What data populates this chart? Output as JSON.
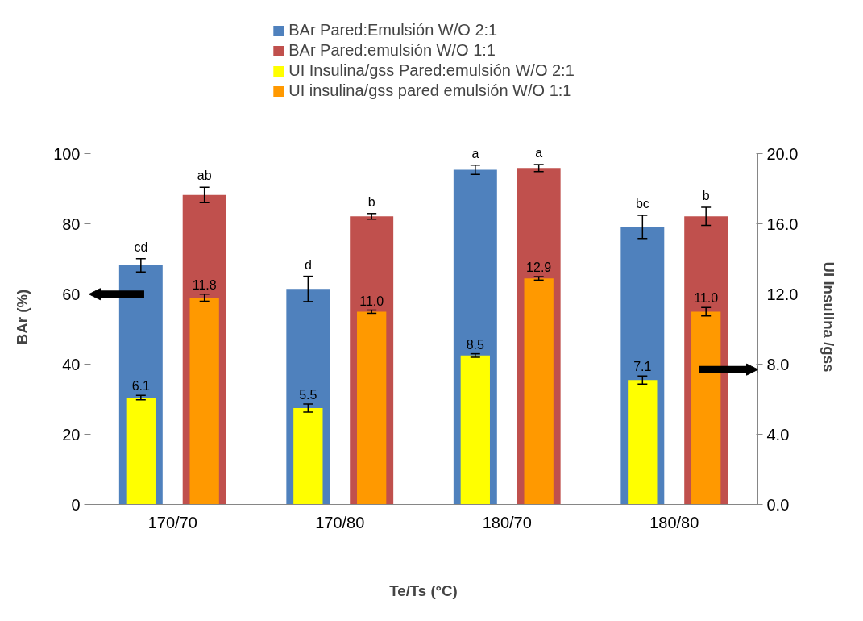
{
  "chart_data": {
    "type": "bar",
    "xlabel": "Te/Ts (°C)",
    "ylabel": "BAr (%)",
    "y2label": "UI Insulina /gss",
    "categories": [
      "170/70",
      "170/80",
      "180/70",
      "180/80"
    ],
    "ylim": [
      0,
      100
    ],
    "yticks": [
      0,
      20,
      40,
      60,
      80,
      100
    ],
    "y2lim": [
      0,
      20
    ],
    "y2ticks": [
      {
        "value": 0,
        "label": "0.0"
      },
      {
        "value": 4,
        "label": "4.0"
      },
      {
        "value": 8,
        "label": "8.0"
      },
      {
        "value": 12,
        "label": "12.0"
      },
      {
        "value": 16,
        "label": "16.0"
      },
      {
        "value": 20,
        "label": "20.0"
      }
    ],
    "grid": false,
    "legend": "top",
    "series": [
      {
        "name": "BAr Pared:Emulsión W/O 2:1",
        "color": "#4f81bd",
        "values": [
          68.2,
          61.5,
          95.5,
          79.2
        ],
        "errors": [
          1.9,
          3.6,
          1.3,
          3.3
        ],
        "value_labels": [
          "cd",
          "d",
          "a",
          "bc"
        ]
      },
      {
        "name": "BAr Pared:emulsión W/O 1:1",
        "color": "#c0504d",
        "values": [
          88.3,
          82.2,
          96.0,
          82.2
        ],
        "errors": [
          2.2,
          0.8,
          1.0,
          2.6
        ],
        "value_labels": [
          "ab",
          "b",
          "a",
          "b"
        ]
      },
      {
        "name": "UI Insulina/gss Pared:emulsión W/O 2:1",
        "color": "#ffff00",
        "axis": "y2",
        "values": [
          6.1,
          5.5,
          8.5,
          7.1
        ],
        "errors": [
          0.13,
          0.23,
          0.1,
          0.23
        ],
        "value_labels": [
          "6.1",
          "5.5",
          "8.5",
          "7.1"
        ]
      },
      {
        "name": "UI insulina/gss pared emulsión W/O 1:1",
        "color": "#ff9900",
        "axis": "y2",
        "values": [
          11.8,
          11.0,
          12.9,
          11.0
        ],
        "errors": [
          0.2,
          0.09,
          0.1,
          0.24
        ],
        "value_labels": [
          "11.8",
          "11.0",
          "12.9",
          "11.0"
        ]
      }
    ]
  }
}
